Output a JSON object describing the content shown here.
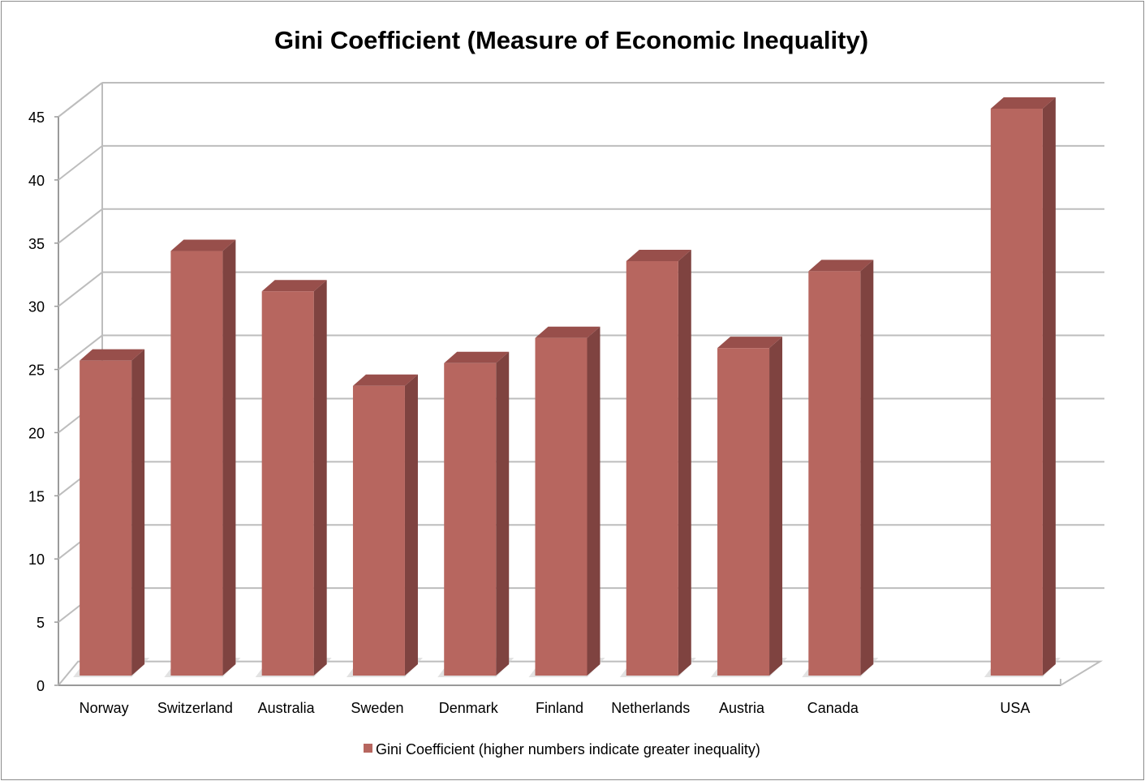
{
  "chart_data": {
    "type": "bar",
    "title": "Gini Coefficient (Measure of Economic Inequality)",
    "categories": [
      "Norway",
      "Switzerland",
      "Australia",
      "Sweden",
      "Denmark",
      "Finland",
      "Netherlands",
      "Austria",
      "Canada",
      "",
      "USA"
    ],
    "series": [
      {
        "name": "Gini Coefficient (higher numbers indicate greater inequality)",
        "values": [
          25.0,
          33.7,
          30.5,
          23.0,
          24.8,
          26.8,
          32.9,
          26.0,
          32.1,
          null,
          45.0
        ]
      }
    ],
    "ylim": [
      0,
      45
    ],
    "yticks": [
      0,
      5,
      10,
      15,
      20,
      25,
      30,
      35,
      40,
      45
    ],
    "xlabel": "",
    "ylabel": "",
    "grid": true,
    "legend_position": "bottom",
    "colors": {
      "bar_front": "#b7665f",
      "bar_side": "#7f4340",
      "bar_top": "#984f4b",
      "grid": "#bdbdbd",
      "axis": "#9a9a9a"
    }
  }
}
